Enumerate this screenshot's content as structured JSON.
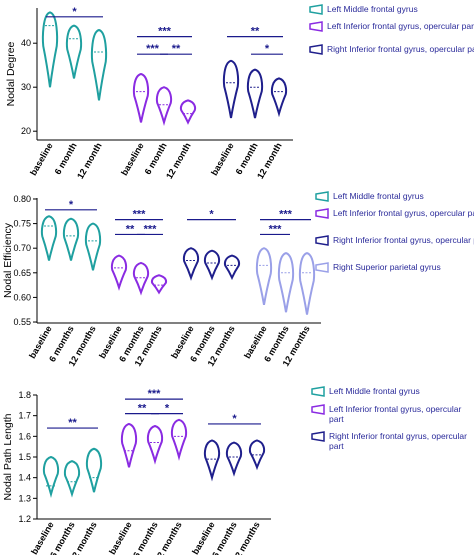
{
  "chart_data": [
    {
      "type": "violin",
      "ylabel": "Nodal Degree",
      "ylim": [
        18,
        48
      ],
      "yticks": [
        "20",
        "30",
        "40"
      ],
      "timepoints": [
        "baseline",
        "6 month",
        "12 month"
      ],
      "series": [
        {
          "name": "Left Middle frontal gyrus",
          "color": "#1fa0a0",
          "medians": [
            44,
            41,
            38
          ],
          "mins": [
            30,
            32,
            27
          ],
          "maxs": [
            47,
            44,
            43
          ]
        },
        {
          "name": "Left Inferior frontal gyrus, opercular part",
          "color": "#8a2be2",
          "medians": [
            29,
            26,
            24
          ],
          "mins": [
            22,
            22,
            22
          ],
          "maxs": [
            33,
            30,
            27
          ]
        },
        {
          "name": "Right Inferior frontal gyrus, opercular part",
          "color": "#1f1f8c",
          "medians": [
            31,
            30,
            29
          ],
          "mins": [
            23,
            23,
            24
          ],
          "maxs": [
            36,
            34,
            32
          ]
        }
      ],
      "significance": [
        {
          "label": "*",
          "group": 0,
          "from": 0,
          "to": 2,
          "level": 46
        },
        {
          "label": "***",
          "group": 1,
          "from": 0,
          "to": 2,
          "level": 41.5
        },
        {
          "label": "***",
          "group": 1,
          "from": 0,
          "to": 1,
          "level": 37.5
        },
        {
          "label": "**",
          "group": 1,
          "from": 1,
          "to": 2,
          "level": 37.5
        },
        {
          "label": "**",
          "group": 2,
          "from": 0,
          "to": 2,
          "level": 41.5
        },
        {
          "label": "*",
          "group": 2,
          "from": 1,
          "to": 2,
          "level": 37.5
        }
      ]
    },
    {
      "type": "violin",
      "ylabel": "Nodal Efficiency",
      "ylim": [
        0.548,
        0.802
      ],
      "yticks": [
        "0.55",
        "0.60",
        "0.65",
        "0.70",
        "0.75",
        "0.80"
      ],
      "timepoints": [
        "baseline",
        "6 months",
        "12 months"
      ],
      "series": [
        {
          "name": "Left Middle frontal gyrus",
          "color": "#1fa0a0",
          "medians": [
            0.745,
            0.725,
            0.715
          ],
          "mins": [
            0.675,
            0.675,
            0.655
          ],
          "maxs": [
            0.765,
            0.76,
            0.75
          ]
        },
        {
          "name": "Left Inferior frontal gyrus, opercular part",
          "color": "#8a2be2",
          "medians": [
            0.66,
            0.64,
            0.625
          ],
          "mins": [
            0.62,
            0.61,
            0.61
          ],
          "maxs": [
            0.685,
            0.67,
            0.645
          ]
        },
        {
          "name": "Right Inferior frontal gyrus, opercular part",
          "color": "#1f1f8c",
          "medians": [
            0.675,
            0.67,
            0.665
          ],
          "mins": [
            0.64,
            0.64,
            0.64
          ],
          "maxs": [
            0.7,
            0.695,
            0.685
          ]
        },
        {
          "name": "Right Superior parietal gyrus",
          "color": "#9aa0e8",
          "medians": [
            0.665,
            0.65,
            0.65
          ],
          "mins": [
            0.585,
            0.57,
            0.565
          ],
          "maxs": [
            0.7,
            0.69,
            0.69
          ]
        }
      ],
      "significance": [
        {
          "label": "*",
          "group": 0,
          "from": 0,
          "to": 2,
          "level": 0.778
        },
        {
          "label": "***",
          "group": 1,
          "from": 0,
          "to": 2,
          "level": 0.758
        },
        {
          "label": "**",
          "group": 1,
          "from": 0,
          "to": 1,
          "level": 0.728
        },
        {
          "label": "***",
          "group": 1,
          "from": 1,
          "to": 2,
          "level": 0.728
        },
        {
          "label": "*",
          "group": 2,
          "from": 0,
          "to": 2,
          "level": 0.758
        },
        {
          "label": "***",
          "group": 3,
          "from": 0,
          "to": 2,
          "level": 0.758
        },
        {
          "label": "***",
          "group": 3,
          "from": 0,
          "to": 1,
          "level": 0.728
        }
      ]
    },
    {
      "type": "violin",
      "ylabel": "Nodal Path Length",
      "ylim": [
        1.2,
        1.8
      ],
      "yticks": [
        "1.2",
        "1.3",
        "1.4",
        "1.5",
        "1.6",
        "1.7",
        "1.8"
      ],
      "timepoints": [
        "baseline",
        "6 months",
        "12 months"
      ],
      "series": [
        {
          "name": "Left Middle frontal gyrus",
          "color": "#1fa0a0",
          "medians": [
            1.36,
            1.38,
            1.4
          ],
          "mins": [
            1.32,
            1.32,
            1.33
          ],
          "maxs": [
            1.5,
            1.48,
            1.54
          ]
        },
        {
          "name": "Left Inferior frontal gyrus, opercular part",
          "color": "#8a2be2",
          "medians": [
            1.53,
            1.57,
            1.6
          ],
          "mins": [
            1.45,
            1.48,
            1.5
          ],
          "maxs": [
            1.66,
            1.65,
            1.68
          ]
        },
        {
          "name": "Right Inferior frontal gyrus, opercular part",
          "color": "#1f1f8c",
          "medians": [
            1.49,
            1.5,
            1.51
          ],
          "mins": [
            1.4,
            1.42,
            1.45
          ],
          "maxs": [
            1.58,
            1.57,
            1.58
          ]
        }
      ],
      "significance": [
        {
          "label": "**",
          "group": 0,
          "from": 0,
          "to": 2,
          "level": 1.64
        },
        {
          "label": "***",
          "group": 1,
          "from": 0,
          "to": 2,
          "level": 1.78
        },
        {
          "label": "**",
          "group": 1,
          "from": 0,
          "to": 1,
          "level": 1.71
        },
        {
          "label": "*",
          "group": 1,
          "from": 1,
          "to": 2,
          "level": 1.71
        },
        {
          "label": "*",
          "group": 2,
          "from": 0,
          "to": 2,
          "level": 1.66
        }
      ]
    }
  ]
}
